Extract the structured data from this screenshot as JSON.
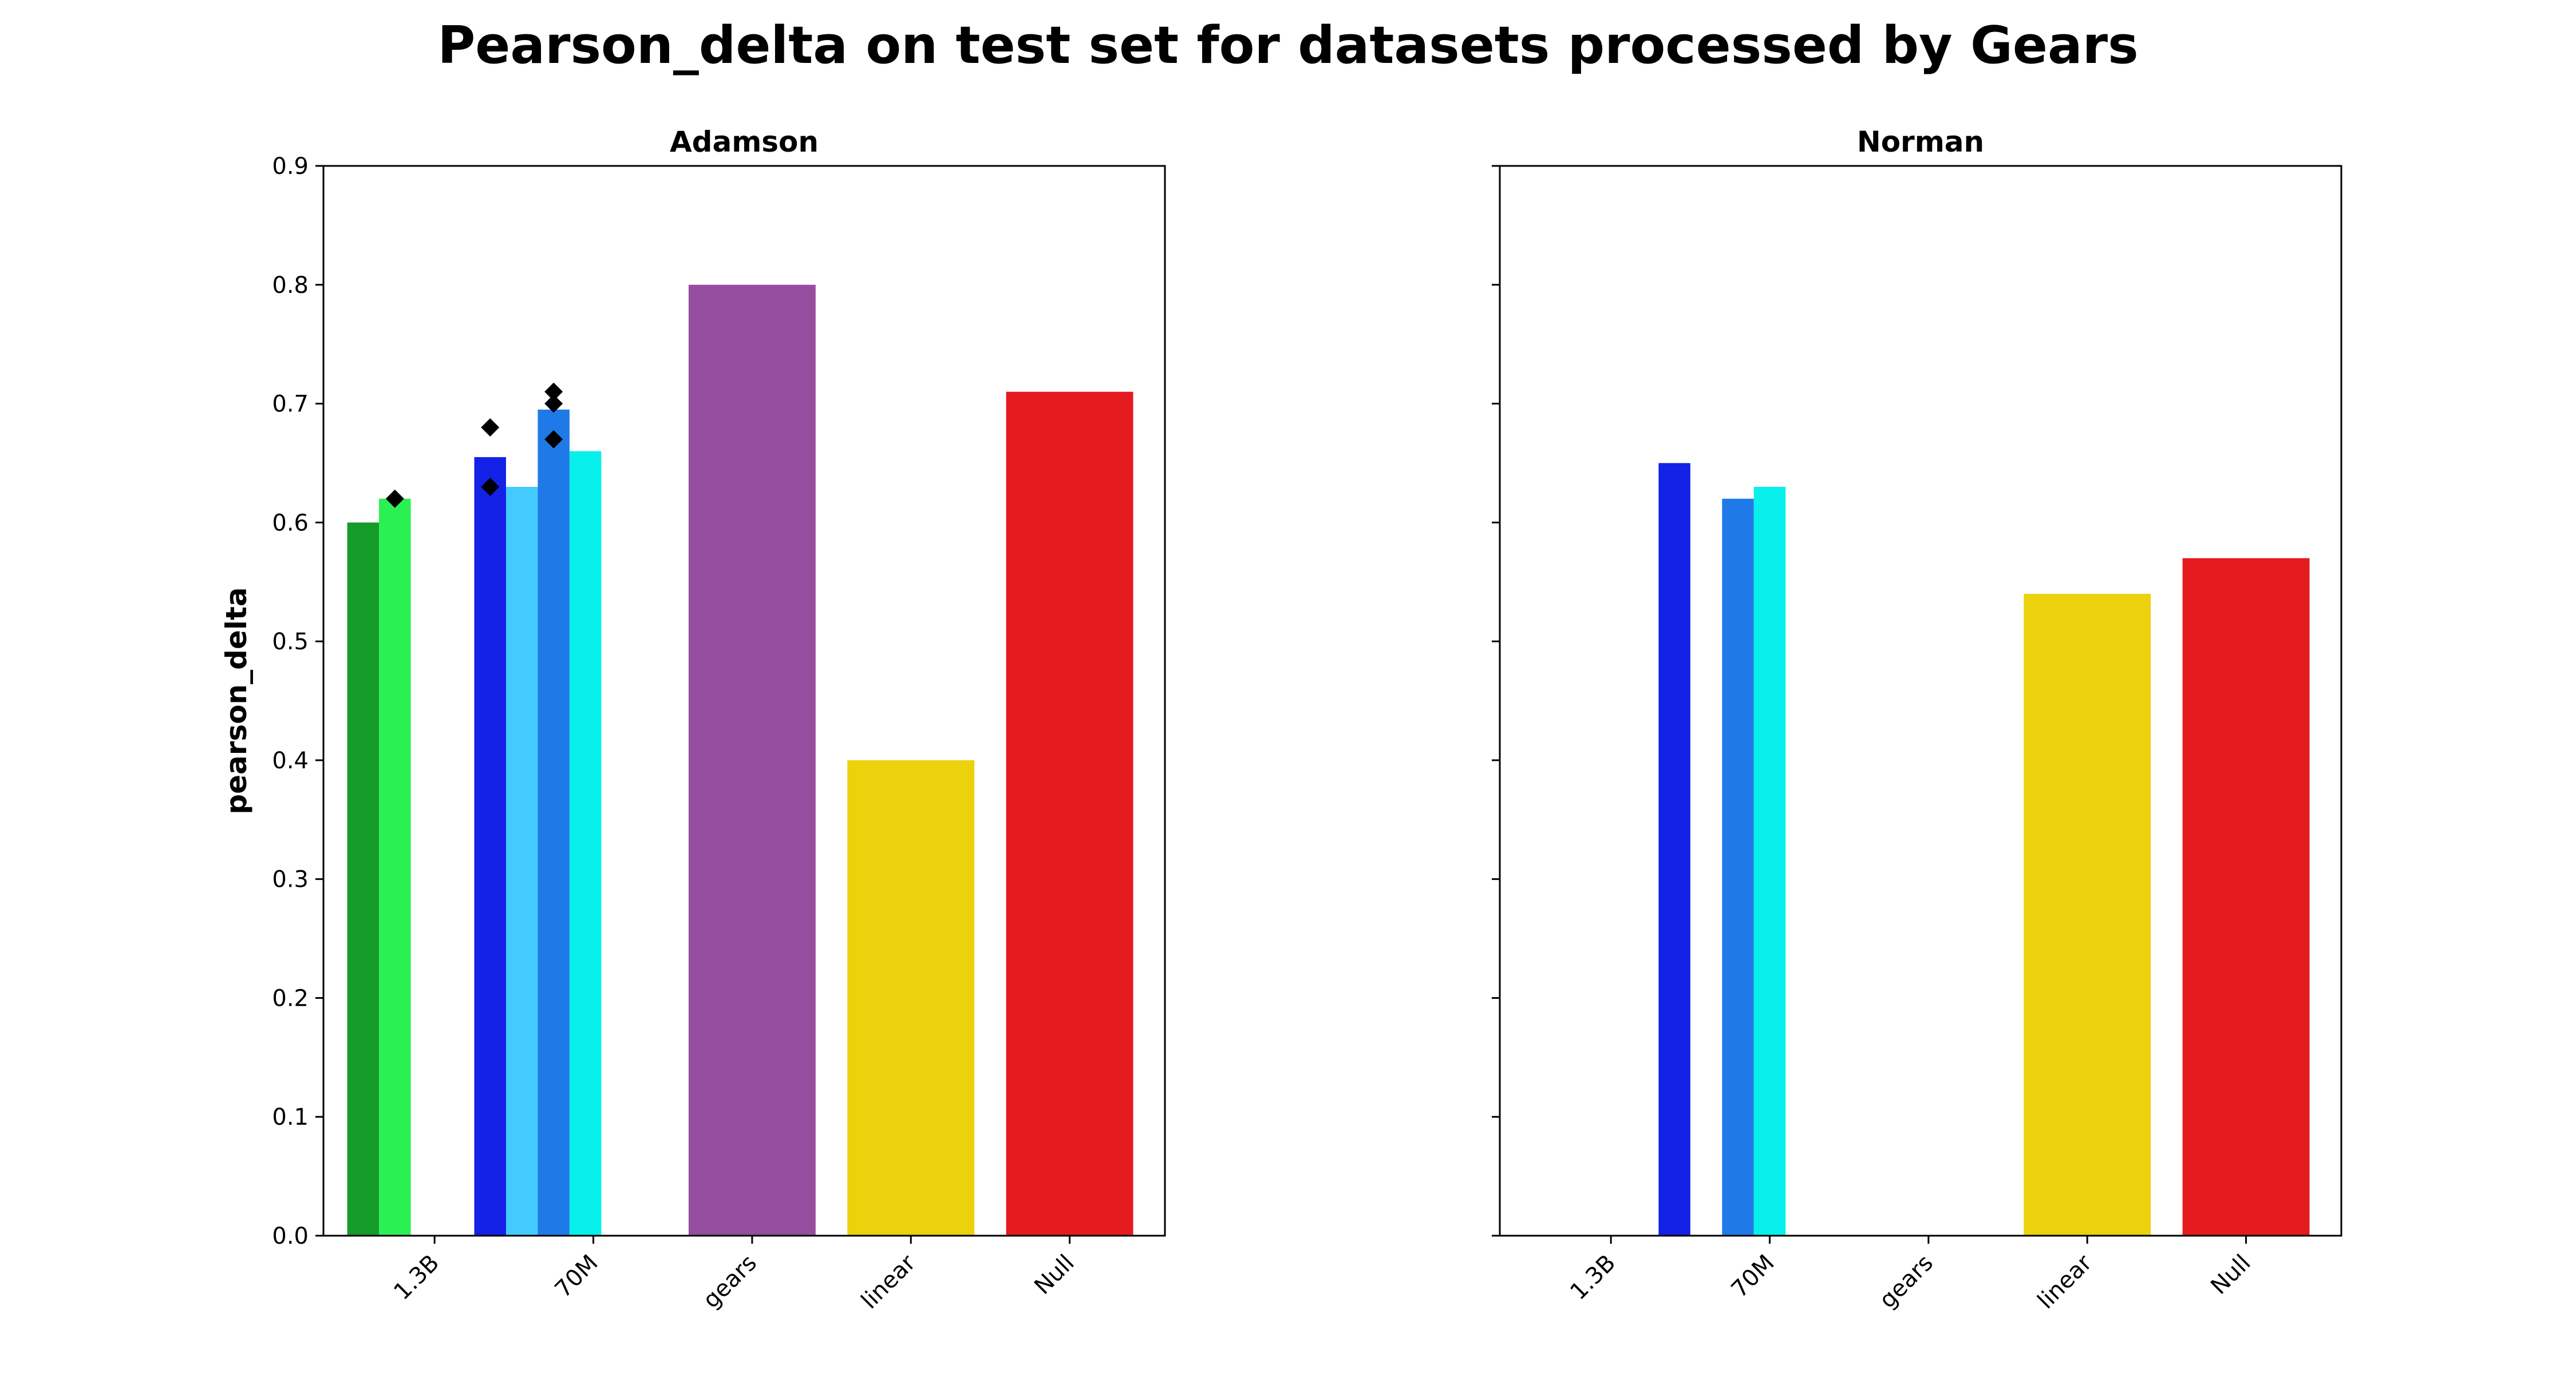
{
  "figure": {
    "suptitle": "Pearson_delta on test set for datasets processed by Gears"
  },
  "chart_data": [
    {
      "type": "bar",
      "title": "Adamson",
      "xlabel": "",
      "ylabel": "pearson_delta",
      "ylim": [
        0,
        0.9
      ],
      "yticks": [
        "0.0",
        "0.1",
        "0.2",
        "0.3",
        "0.4",
        "0.5",
        "0.6",
        "0.7",
        "0.8",
        "0.9"
      ],
      "categories": [
        "1.3B",
        "70M",
        "gears",
        "linear",
        "Null"
      ],
      "grid": false,
      "bars": [
        {
          "category": "1.3B",
          "slot": [
            -0.55,
            -0.35
          ],
          "value": 0.6,
          "color": "#149b2a"
        },
        {
          "category": "1.3B",
          "slot": [
            -0.35,
            -0.15
          ],
          "value": 0.62,
          "color": "#2af053"
        },
        {
          "category": "70M",
          "slot": [
            0.25,
            0.45
          ],
          "value": 0.655,
          "color": "#1421e6"
        },
        {
          "category": "70M",
          "slot": [
            0.45,
            0.65
          ],
          "value": 0.63,
          "color": "#43cbff"
        },
        {
          "category": "70M",
          "slot": [
            0.65,
            0.85
          ],
          "value": 0.695,
          "color": "#1f7ae8"
        },
        {
          "category": "70M",
          "slot": [
            0.85,
            1.05
          ],
          "value": 0.66,
          "color": "#07f0ec"
        },
        {
          "category": "gears",
          "slot": [
            1.6,
            2.4
          ],
          "value": 0.8,
          "color": "#964ea0"
        },
        {
          "category": "linear",
          "slot": [
            2.6,
            3.4
          ],
          "value": 0.4,
          "color": "#ebd20c"
        },
        {
          "category": "Null",
          "slot": [
            3.6,
            4.4
          ],
          "value": 0.71,
          "color": "#e41b1f"
        }
      ],
      "points": [
        {
          "x": -0.25,
          "y": 0.62
        },
        {
          "x": 0.35,
          "y": 0.68
        },
        {
          "x": 0.35,
          "y": 0.63
        },
        {
          "x": 0.75,
          "y": 0.71
        },
        {
          "x": 0.75,
          "y": 0.7
        },
        {
          "x": 0.75,
          "y": 0.67
        }
      ],
      "point_color": "#000000"
    },
    {
      "type": "bar",
      "title": "Norman",
      "xlabel": "",
      "ylabel": "",
      "ylim": [
        0,
        0.9
      ],
      "yticks": [],
      "categories": [
        "1.3B",
        "70M",
        "gears",
        "linear",
        "Null"
      ],
      "grid": false,
      "bars": [
        {
          "category": "70M",
          "slot": [
            0.3,
            0.5
          ],
          "value": 0.65,
          "color": "#1421e6"
        },
        {
          "category": "70M",
          "slot": [
            0.7,
            0.9
          ],
          "value": 0.62,
          "color": "#1f7ae8"
        },
        {
          "category": "70M",
          "slot": [
            0.9,
            1.1
          ],
          "value": 0.63,
          "color": "#07f0ec"
        },
        {
          "category": "linear",
          "slot": [
            2.6,
            3.4
          ],
          "value": 0.54,
          "color": "#ebd20c"
        },
        {
          "category": "Null",
          "slot": [
            3.6,
            4.4
          ],
          "value": 0.57,
          "color": "#e41b1f"
        }
      ],
      "points": [],
      "point_color": "#000000"
    }
  ]
}
